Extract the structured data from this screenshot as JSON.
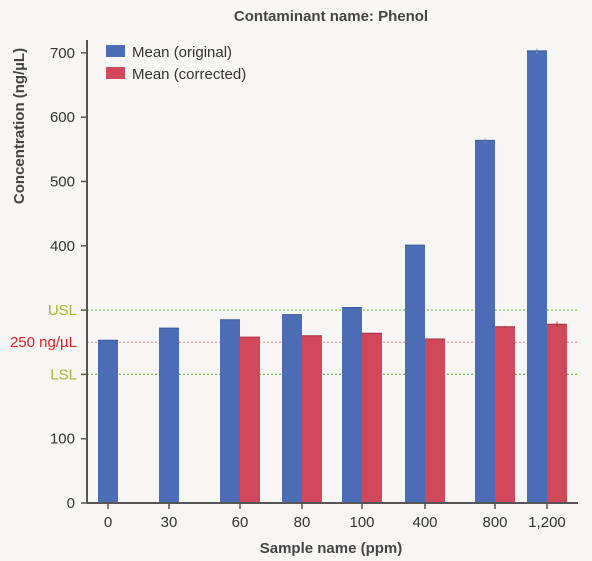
{
  "chart_data": {
    "type": "bar",
    "title": "Contaminant name: Phenol",
    "xlabel": "Sample name (ppm)",
    "ylabel": "Concentration (ng/µL)",
    "categories": [
      "0",
      "30",
      "60",
      "80",
      "100",
      "400",
      "800",
      "1,200"
    ],
    "ylim": [
      0,
      720
    ],
    "yticks": [
      0,
      100,
      200,
      300,
      400,
      500,
      600,
      700
    ],
    "ytick_labels": [
      "0",
      "100",
      "",
      "",
      "400",
      "500",
      "600",
      "700"
    ],
    "grid": false,
    "legend_position": "top-left",
    "series": [
      {
        "name": "Mean (original)",
        "color": "#4a6db5",
        "values": [
          253,
          272,
          285,
          293,
          304,
          401,
          564,
          703
        ],
        "errors": [
          0,
          1,
          0,
          0,
          0,
          1,
          3,
          4
        ]
      },
      {
        "name": "Mean (corrected)",
        "color": "#d1485a",
        "values": [
          null,
          null,
          258,
          260,
          264,
          255,
          274,
          278
        ],
        "errors": [
          0,
          0,
          0,
          0,
          0,
          0,
          1,
          4
        ]
      }
    ],
    "reference_lines": [
      {
        "label": "USL",
        "value": 300,
        "color": "#6bbd45",
        "label_color": "#a7b42d",
        "style": "dotted"
      },
      {
        "label": "250 ng/µL",
        "value": 250,
        "color": "#ee98a2",
        "label_color": "#e02020",
        "style": "dotted"
      },
      {
        "label": "LSL",
        "value": 200,
        "color": "#6bbd45",
        "label_color": "#a7b42d",
        "style": "dotted"
      }
    ]
  }
}
